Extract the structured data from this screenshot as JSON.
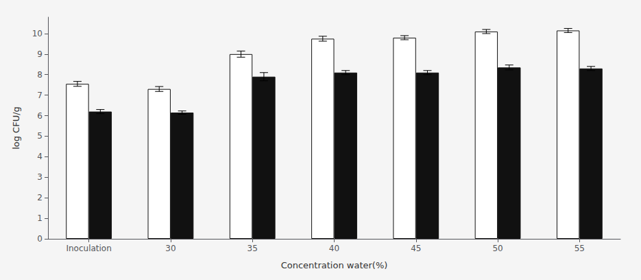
{
  "chart_data": {
    "type": "bar",
    "xlabel": "Concentration water(%)",
    "ylabel": "log CFU/g",
    "categories": [
      "Inoculation",
      "30",
      "35",
      "40",
      "45",
      "50",
      "55"
    ],
    "series": [
      {
        "color": "#ffffff",
        "values": [
          7.55,
          7.3,
          9.0,
          9.75,
          9.8,
          10.1,
          10.15
        ],
        "errors": [
          0.12,
          0.12,
          0.15,
          0.12,
          0.1,
          0.1,
          0.1
        ]
      },
      {
        "color": "#111111",
        "values": [
          6.2,
          6.15,
          7.9,
          8.1,
          8.1,
          8.35,
          8.3
        ],
        "errors": [
          0.1,
          0.08,
          0.2,
          0.1,
          0.1,
          0.12,
          0.1
        ]
      }
    ],
    "ylim": [
      0,
      10.8
    ],
    "yticks": [
      0,
      1,
      2,
      3,
      4,
      5,
      6,
      7,
      8,
      9,
      10
    ],
    "grid": false
  }
}
